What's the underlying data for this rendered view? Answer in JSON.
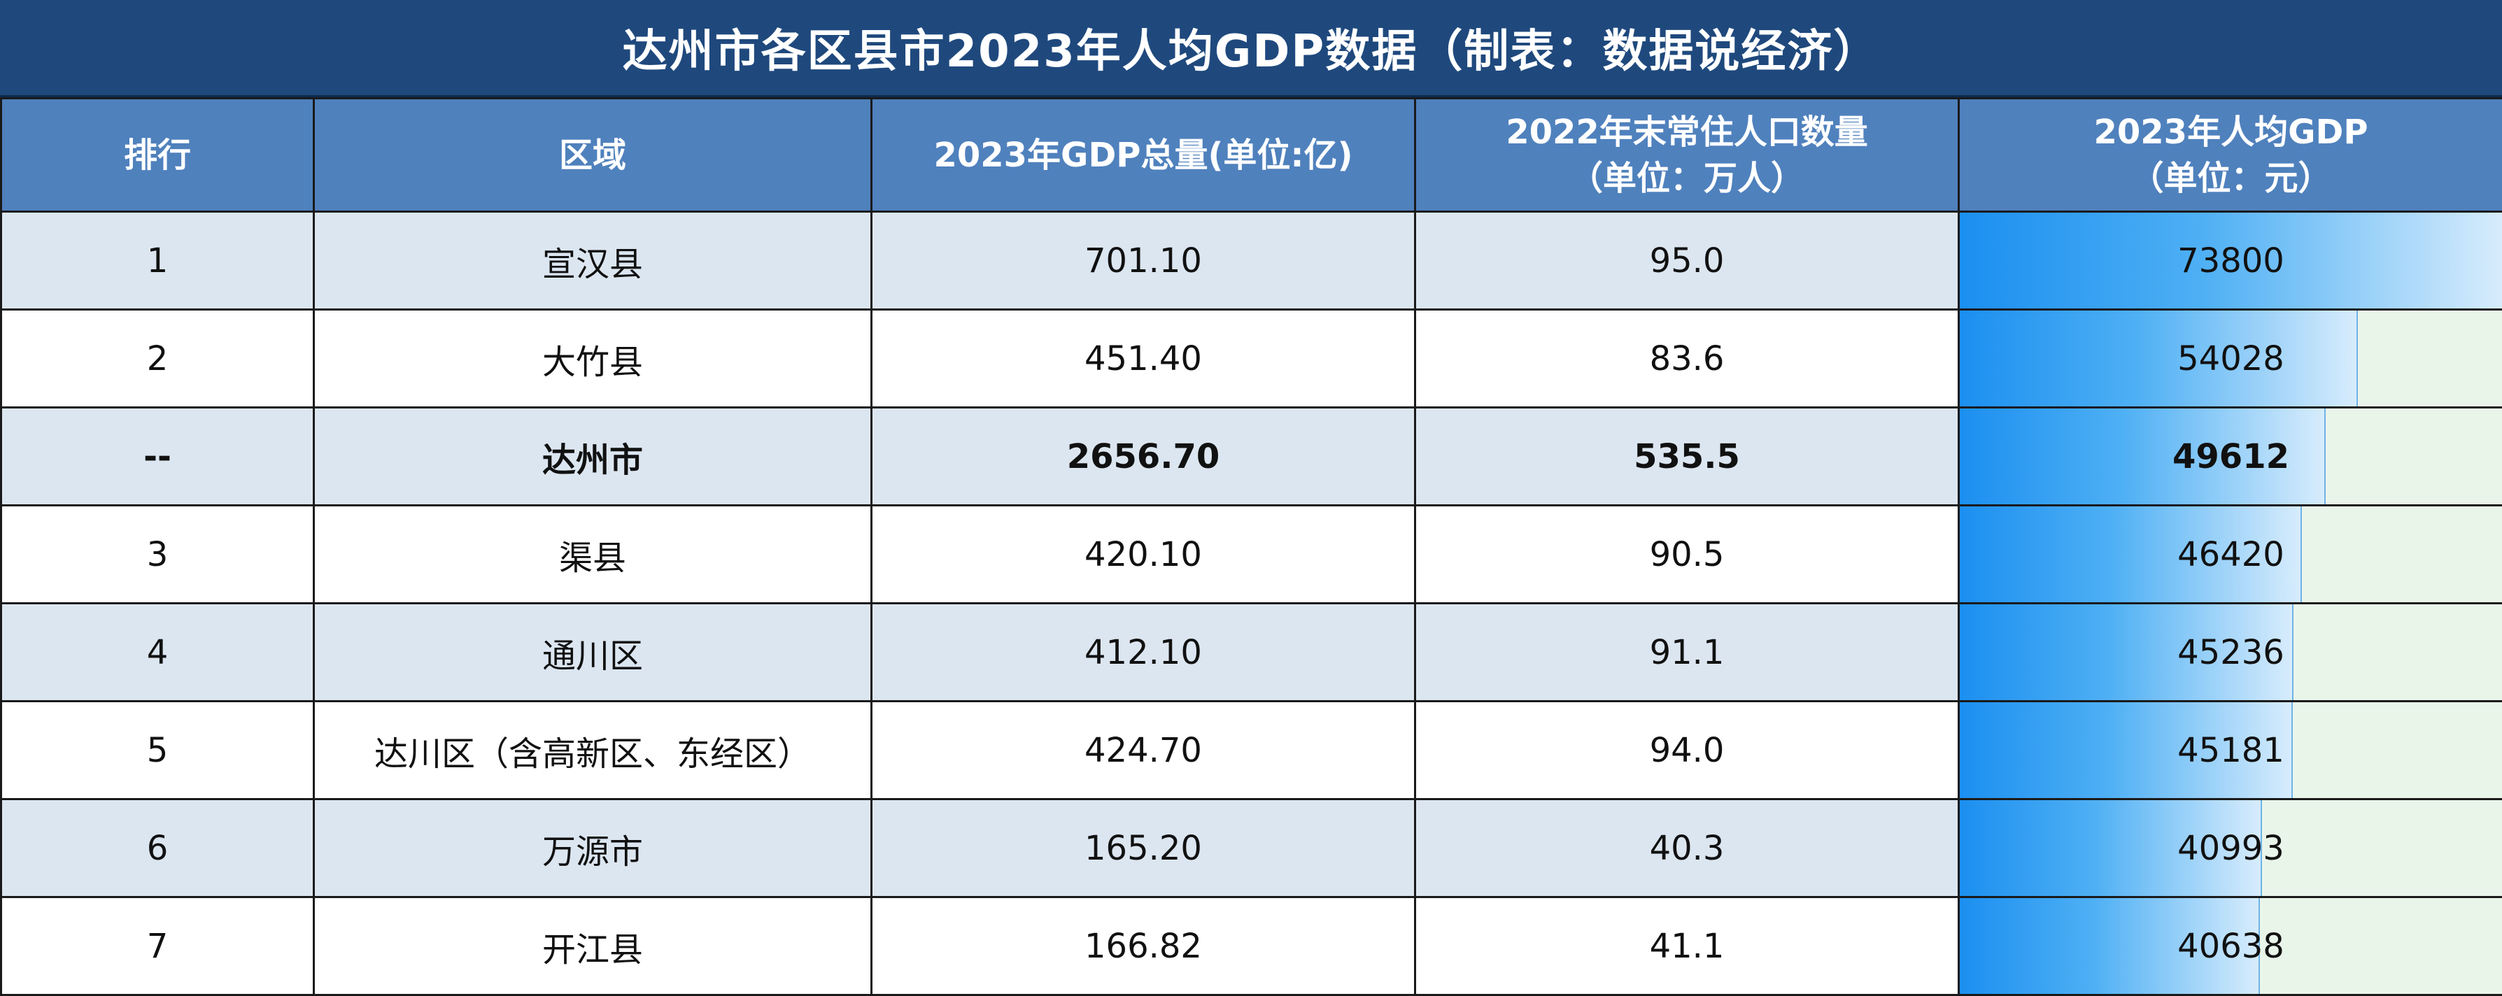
{
  "title": "达州市各区县市2023年人均GDP数据（制表：数据说经济）",
  "headers": {
    "rank": "排行",
    "region": "区域",
    "gdp_line1": "2023年GDP总量(单位:亿)",
    "pop_line1": "2022年末常住人口数量",
    "pop_line2": "（单位：万人）",
    "pcgdp_line1": "2023年人均GDP",
    "pcgdp_line2": "（单位：元）"
  },
  "rows": [
    {
      "rank": "1",
      "region": "宣汉县",
      "gdp": "701.10",
      "pop": "95.0",
      "pcgdp": "73800",
      "pcgdp_value": 73800,
      "bold": false
    },
    {
      "rank": "2",
      "region": "大竹县",
      "gdp": "451.40",
      "pop": "83.6",
      "pcgdp": "54028",
      "pcgdp_value": 54028,
      "bold": false
    },
    {
      "rank": "--",
      "region": "达州市",
      "gdp": "2656.70",
      "pop": "535.5",
      "pcgdp": "49612",
      "pcgdp_value": 49612,
      "bold": true
    },
    {
      "rank": "3",
      "region": "渠县",
      "gdp": "420.10",
      "pop": "90.5",
      "pcgdp": "46420",
      "pcgdp_value": 46420,
      "bold": false
    },
    {
      "rank": "4",
      "region": "通川区",
      "gdp": "412.10",
      "pop": "91.1",
      "pcgdp": "45236",
      "pcgdp_value": 45236,
      "bold": false
    },
    {
      "rank": "5",
      "region": "达川区（含高新区、东经区）",
      "gdp": "424.70",
      "pop": "94.0",
      "pcgdp": "45181",
      "pcgdp_value": 45181,
      "bold": false
    },
    {
      "rank": "6",
      "region": "万源市",
      "gdp": "165.20",
      "pop": "40.3",
      "pcgdp": "40993",
      "pcgdp_value": 40993,
      "bold": false
    },
    {
      "rank": "7",
      "region": "开江县",
      "gdp": "166.82",
      "pop": "41.1",
      "pcgdp": "40638",
      "pcgdp_value": 40638,
      "bold": false
    }
  ],
  "colors": {
    "title_bg": "#1f497d",
    "header_bg": "#4f81bd",
    "row_alt_bg": "#dce6f1",
    "bar_start": "#1b8ff0",
    "bar_end": "#d7ecfc",
    "bar_track": "#eaf5ea"
  }
}
